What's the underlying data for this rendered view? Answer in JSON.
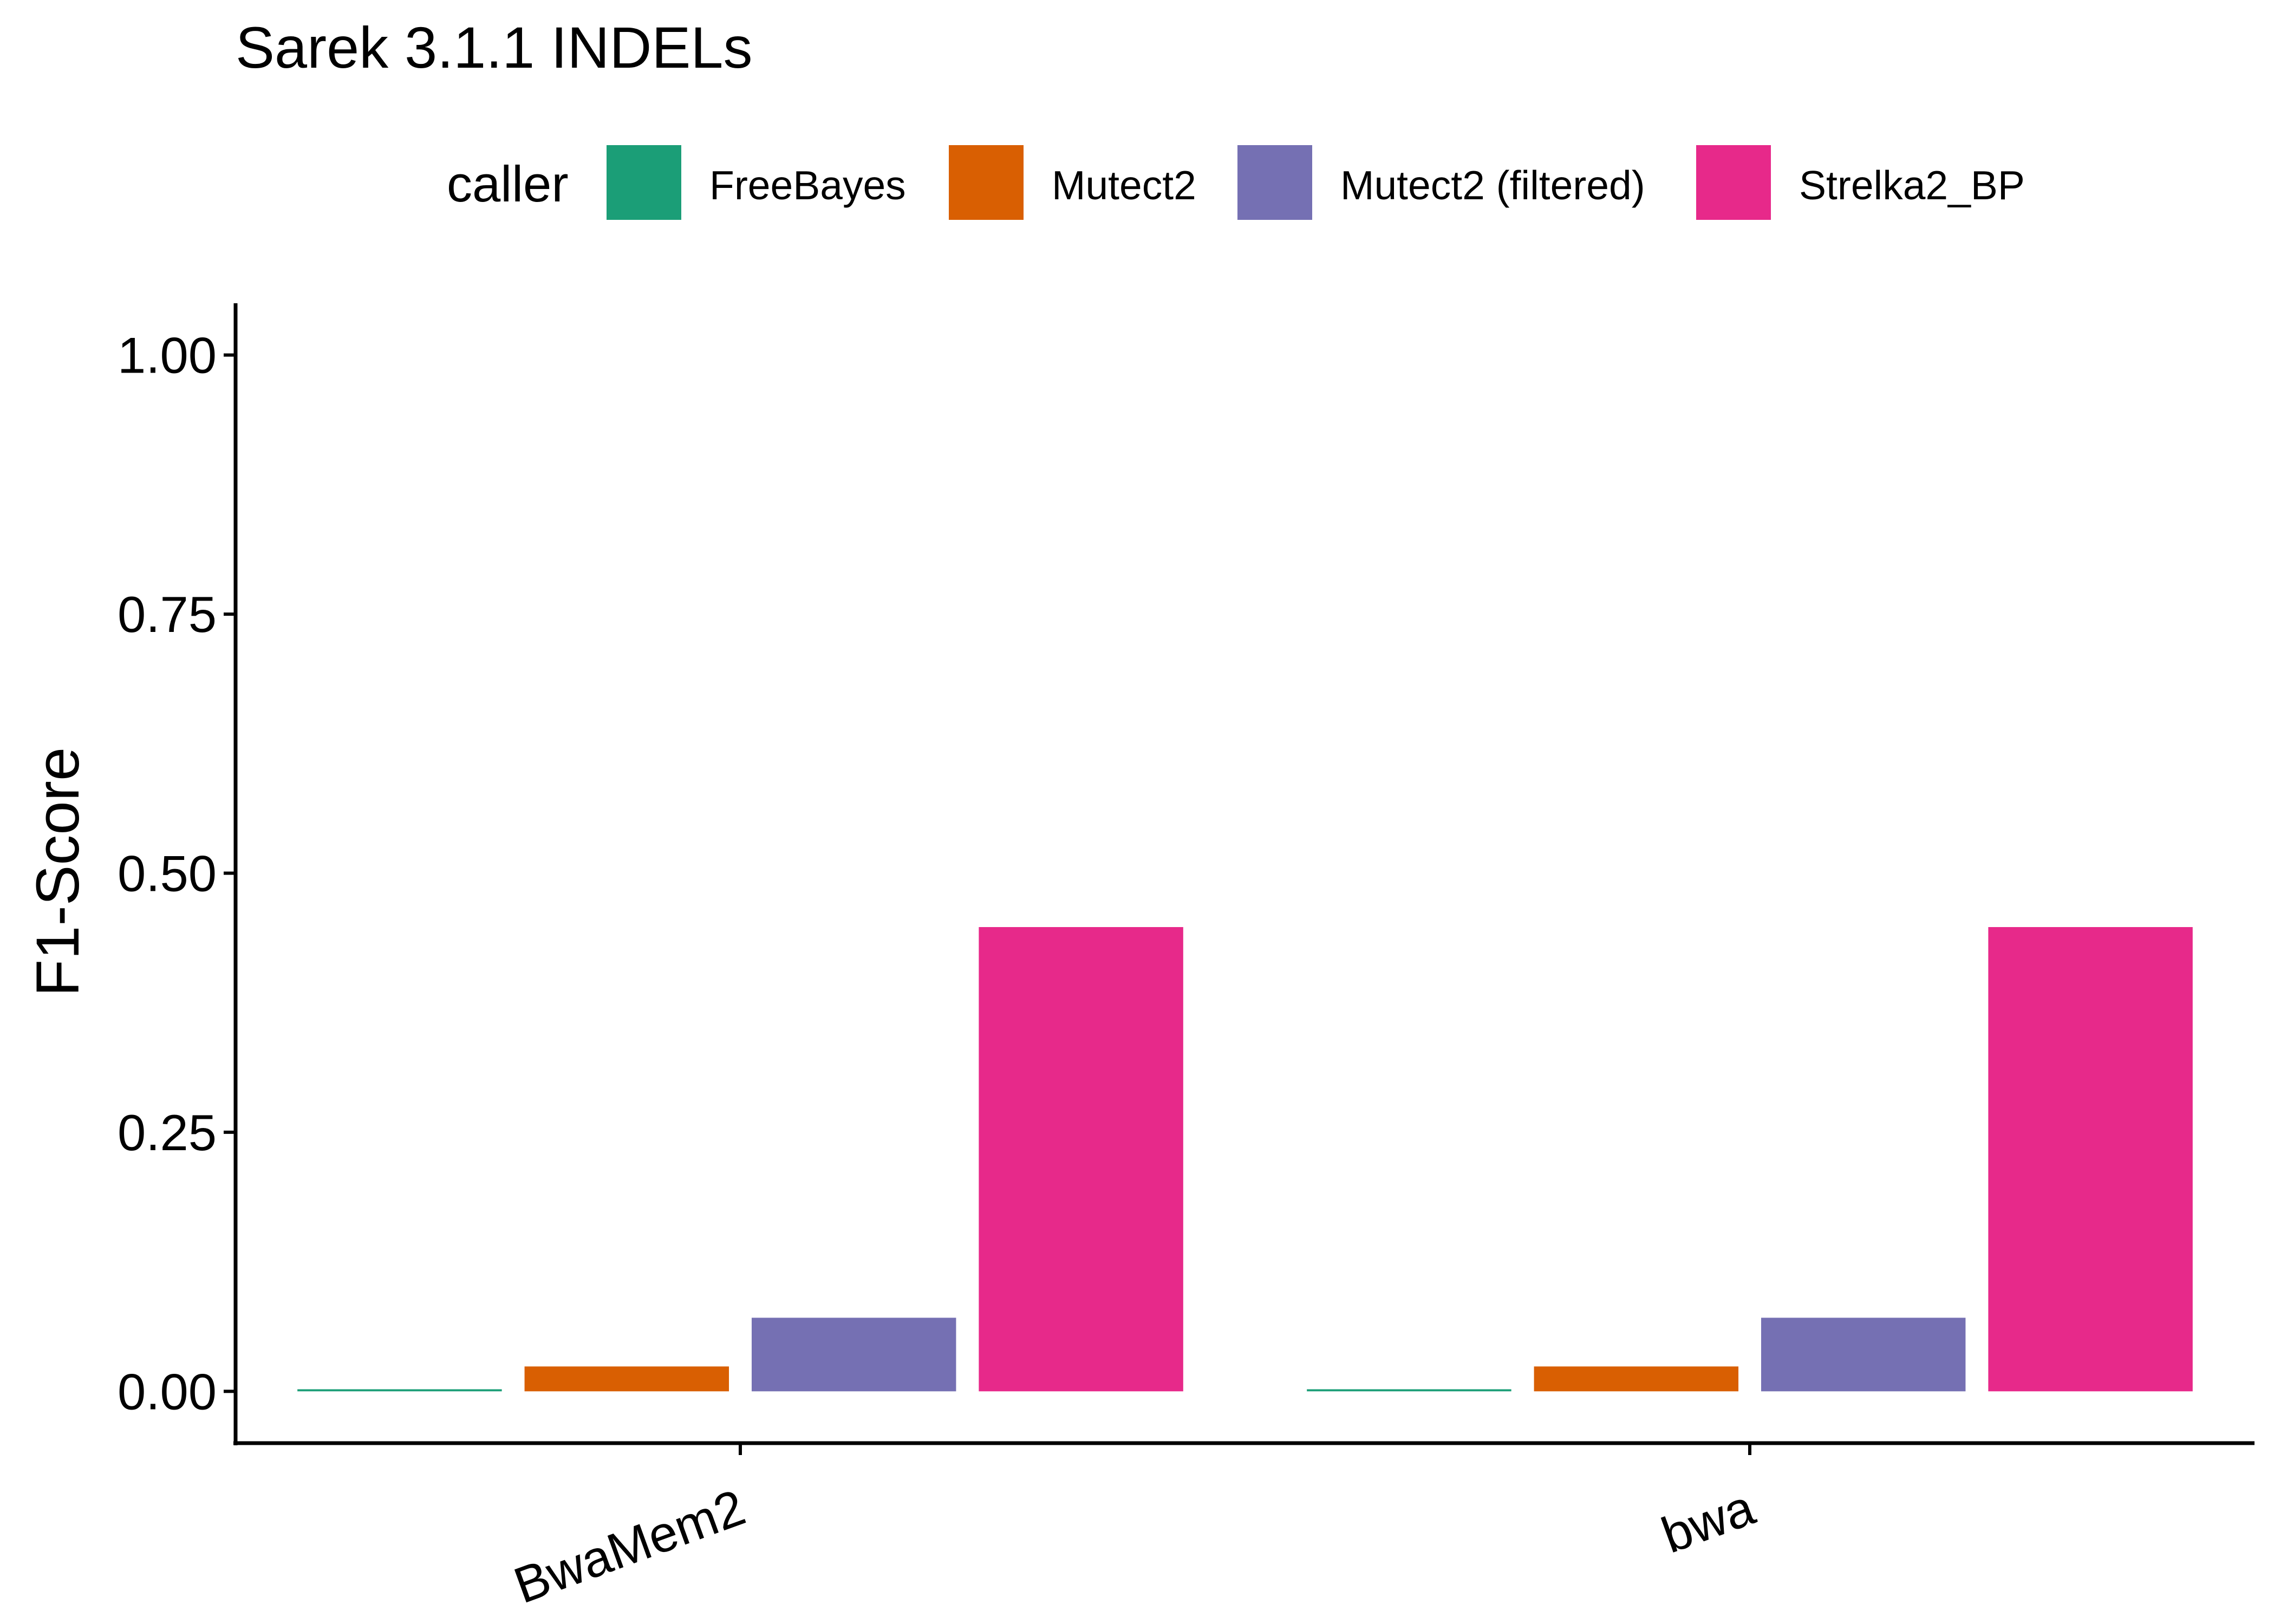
{
  "chart_data": {
    "type": "bar",
    "title": "Sarek 3.1.1 INDELs",
    "xlabel": "",
    "ylabel": "F1-Score",
    "legend_title": "caller",
    "legend_position": "top",
    "grid": false,
    "ylim": [
      -0.05,
      1.05
    ],
    "yticks": [
      "0.00",
      "0.25",
      "0.50",
      "0.75",
      "1.00"
    ],
    "categories": [
      "BwaMem2",
      "bwa"
    ],
    "series": [
      {
        "name": "FreeBayes",
        "color": "#1B9E77",
        "values": [
          0.002,
          0.002
        ]
      },
      {
        "name": "Mutect2",
        "color": "#D95F02",
        "values": [
          0.024,
          0.024
        ]
      },
      {
        "name": "Mutect2 (filtered)",
        "color": "#7570B3",
        "values": [
          0.071,
          0.071
        ]
      },
      {
        "name": "Strelka2_BP",
        "color": "#E7298A",
        "values": [
          0.448,
          0.448
        ]
      }
    ]
  }
}
